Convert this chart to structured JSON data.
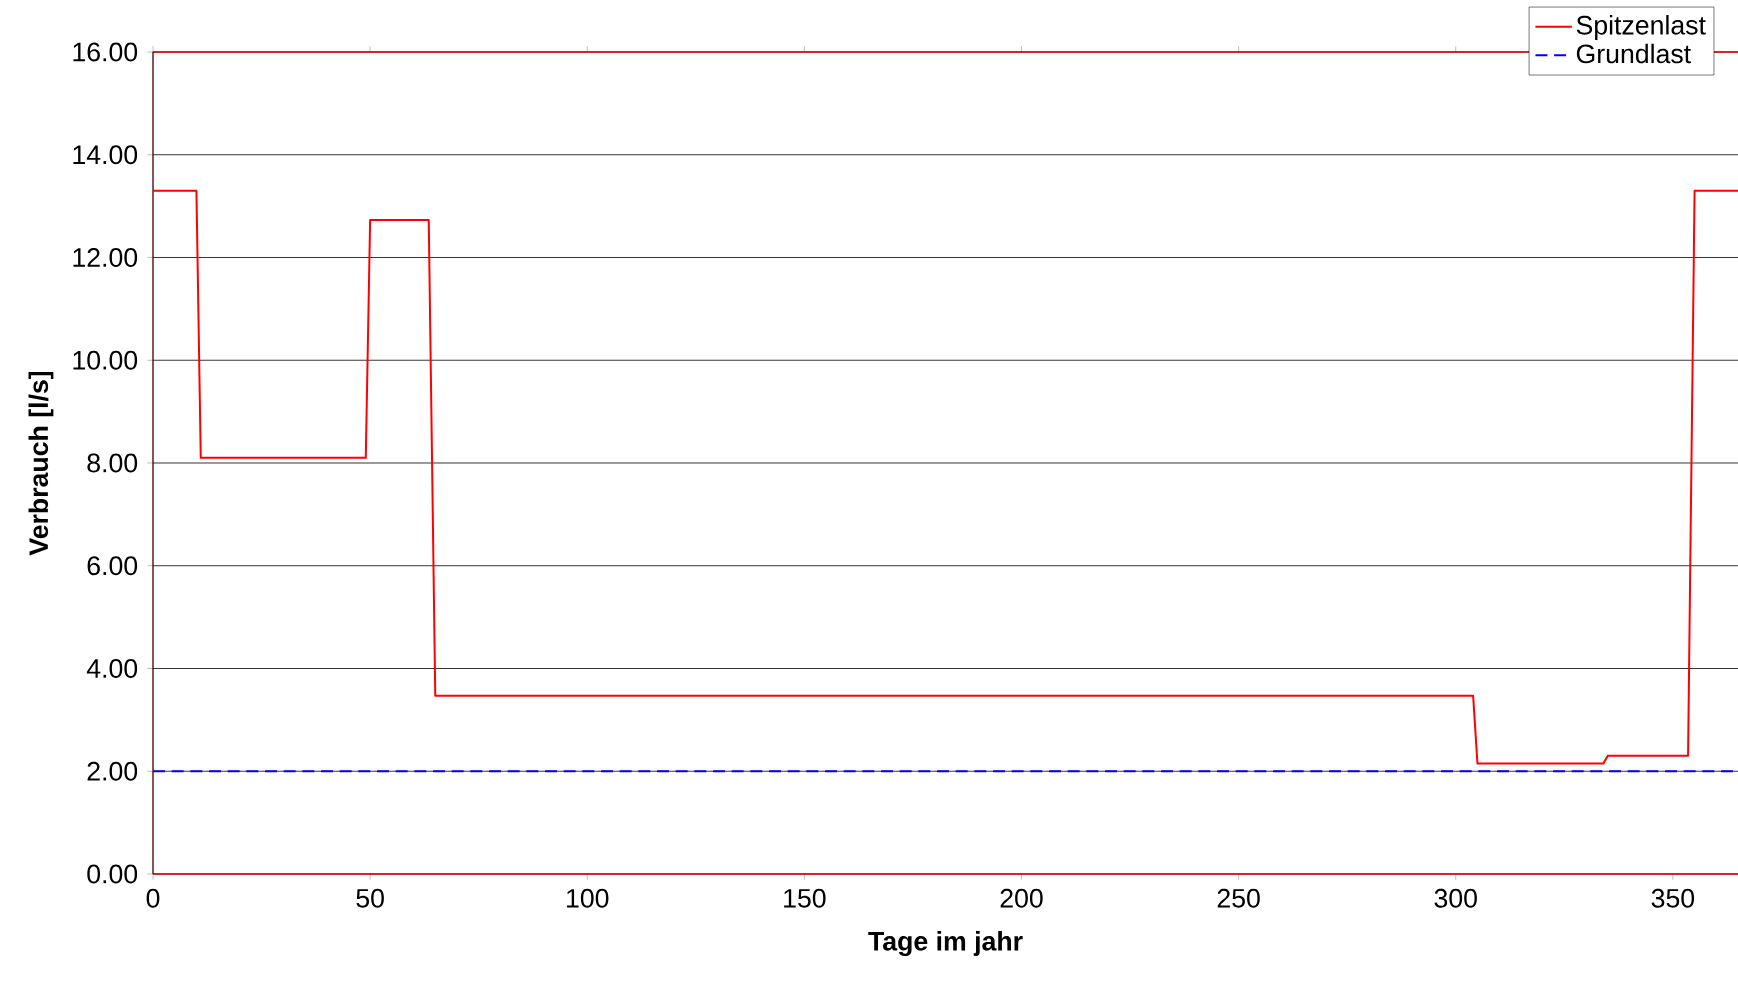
{
  "chart_data": {
    "type": "line",
    "xlabel": "Tage im jahr",
    "ylabel": "Verbrauch [l/s]",
    "xlim": [
      0,
      365
    ],
    "ylim": [
      0,
      16
    ],
    "xticks": [
      0,
      50,
      100,
      150,
      200,
      250,
      300,
      350
    ],
    "yticks": [
      {
        "value": 0,
        "label": "0.00"
      },
      {
        "value": 2,
        "label": "2.00"
      },
      {
        "value": 4,
        "label": "4.00"
      },
      {
        "value": 6,
        "label": "6.00"
      },
      {
        "value": 8,
        "label": "8.00"
      },
      {
        "value": 10,
        "label": "10.00"
      },
      {
        "value": 12,
        "label": "12.00"
      },
      {
        "value": 14,
        "label": "14.00"
      },
      {
        "value": 16,
        "label": "16.00"
      }
    ],
    "grid": "y",
    "legend": "top right",
    "marker": "none",
    "series": [
      {
        "name": "Spitzenlast",
        "color": "#ff0000",
        "line_style": "solid",
        "x": [
          0,
          10,
          11,
          49,
          50,
          63.5,
          65,
          304,
          305,
          334,
          335,
          353.5,
          355,
          365
        ],
        "values": [
          13.3,
          13.3,
          8.1,
          8.1,
          12.73,
          12.73,
          3.47,
          3.47,
          2.15,
          2.15,
          2.3,
          2.3,
          13.3,
          13.3
        ]
      },
      {
        "name": "Grundlast",
        "color": "#0000ff",
        "line_style": "dashed",
        "x": [
          0,
          365
        ],
        "values": [
          2,
          2
        ]
      }
    ]
  }
}
